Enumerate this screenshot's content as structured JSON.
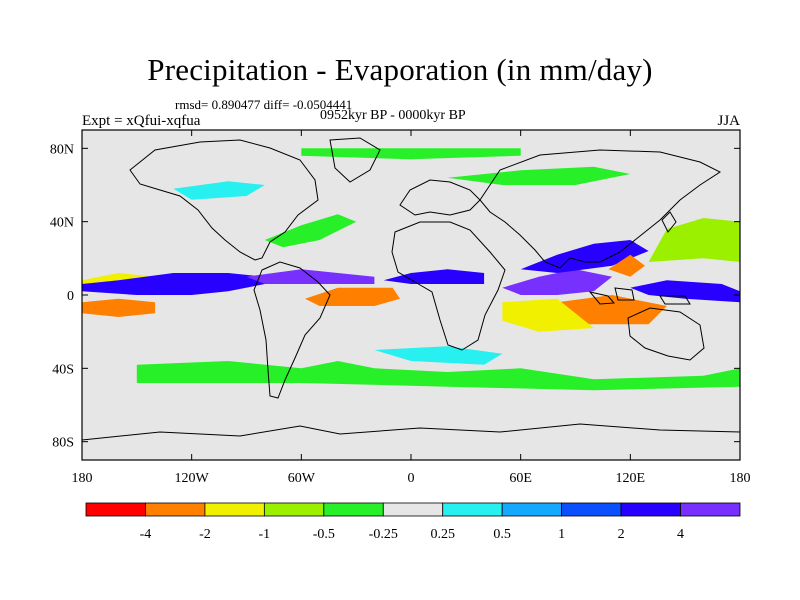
{
  "header": {
    "title": "Precipitation - Evaporation (in mm/day)",
    "stats": "rmsd= 0.890477 diff= -0.0504441",
    "period": "0952kyr BP - 0000kyr BP",
    "experiment": "Expt = xQfui-xqfua",
    "season": "JJA"
  },
  "map": {
    "type": "filled-contour-map",
    "projection": "cylindrical-equidistant",
    "xlim": [
      -180,
      180
    ],
    "ylim": [
      -90,
      90
    ],
    "lon_ticks": [
      {
        "value": -180,
        "label": "180"
      },
      {
        "value": -120,
        "label": "120W"
      },
      {
        "value": -60,
        "label": "60W"
      },
      {
        "value": 0,
        "label": "0"
      },
      {
        "value": 60,
        "label": "60E"
      },
      {
        "value": 120,
        "label": "120E"
      },
      {
        "value": 180,
        "label": "180"
      }
    ],
    "lat_ticks": [
      {
        "value": 80,
        "label": "80N"
      },
      {
        "value": 40,
        "label": "40N"
      },
      {
        "value": 0,
        "label": "0"
      },
      {
        "value": -40,
        "label": "40S"
      },
      {
        "value": -80,
        "label": "80S"
      }
    ],
    "background_color": "#e6e6e6",
    "anomaly_regions": [
      {
        "name": "itcz-pacific-east-negative",
        "class": 2,
        "polygon": [
          [
            -180,
            8
          ],
          [
            -160,
            12
          ],
          [
            -140,
            10
          ],
          [
            -120,
            8
          ],
          [
            -110,
            5
          ],
          [
            -120,
            2
          ],
          [
            -150,
            2
          ],
          [
            -180,
            4
          ]
        ]
      },
      {
        "name": "pacific-equator-positive",
        "class": 9,
        "polygon": [
          [
            -180,
            2
          ],
          [
            -150,
            0
          ],
          [
            -120,
            0
          ],
          [
            -100,
            2
          ],
          [
            -80,
            6
          ],
          [
            -80,
            10
          ],
          [
            -100,
            12
          ],
          [
            -130,
            12
          ],
          [
            -160,
            8
          ],
          [
            -180,
            6
          ]
        ]
      },
      {
        "name": "pacific-south-negative",
        "class": 1,
        "polygon": [
          [
            -180,
            -4
          ],
          [
            -160,
            -2
          ],
          [
            -140,
            -4
          ],
          [
            -140,
            -10
          ],
          [
            -160,
            -12
          ],
          [
            -180,
            -10
          ]
        ]
      },
      {
        "name": "pacific-south-green",
        "class": 5,
        "polygon": [
          [
            -180,
            -14
          ],
          [
            -150,
            -12
          ],
          [
            -130,
            -16
          ],
          [
            -110,
            -24
          ],
          [
            -120,
            -30
          ],
          [
            -150,
            -26
          ],
          [
            -180,
            -20
          ]
        ]
      },
      {
        "name": "atlantic-itcz-negative",
        "class": 0,
        "polygon": [
          [
            -50,
            0
          ],
          [
            -40,
            2
          ],
          [
            -20,
            2
          ],
          [
            -10,
            0
          ],
          [
            -20,
            -4
          ],
          [
            -40,
            -4
          ]
        ]
      },
      {
        "name": "atlantic-itcz-orange",
        "class": 1,
        "polygon": [
          [
            -58,
            -2
          ],
          [
            -40,
            4
          ],
          [
            -10,
            4
          ],
          [
            -6,
            -2
          ],
          [
            -20,
            -6
          ],
          [
            -50,
            -6
          ]
        ]
      },
      {
        "name": "atlantic-north-positive",
        "class": 10,
        "polygon": [
          [
            -90,
            10
          ],
          [
            -60,
            14
          ],
          [
            -40,
            12
          ],
          [
            -20,
            10
          ],
          [
            -20,
            6
          ],
          [
            -50,
            6
          ],
          [
            -80,
            6
          ]
        ]
      },
      {
        "name": "africa-sahel-positive",
        "class": 9,
        "polygon": [
          [
            -15,
            8
          ],
          [
            0,
            12
          ],
          [
            20,
            14
          ],
          [
            40,
            12
          ],
          [
            40,
            6
          ],
          [
            20,
            6
          ],
          [
            0,
            6
          ]
        ]
      },
      {
        "name": "indian-equator-positive",
        "class": 10,
        "polygon": [
          [
            50,
            4
          ],
          [
            70,
            10
          ],
          [
            90,
            14
          ],
          [
            110,
            10
          ],
          [
            100,
            2
          ],
          [
            80,
            0
          ],
          [
            60,
            0
          ]
        ]
      },
      {
        "name": "indonesia-negative",
        "class": 0,
        "polygon": [
          [
            90,
            -6
          ],
          [
            110,
            -4
          ],
          [
            130,
            -8
          ],
          [
            120,
            -14
          ],
          [
            100,
            -14
          ]
        ]
      },
      {
        "name": "indonesia-orange",
        "class": 1,
        "polygon": [
          [
            80,
            -4
          ],
          [
            110,
            0
          ],
          [
            140,
            -6
          ],
          [
            130,
            -16
          ],
          [
            90,
            -16
          ]
        ]
      },
      {
        "name": "indian-south-yellow",
        "class": 2,
        "polygon": [
          [
            50,
            -4
          ],
          [
            80,
            -2
          ],
          [
            100,
            -18
          ],
          [
            70,
            -20
          ],
          [
            50,
            -14
          ]
        ]
      },
      {
        "name": "west-pacific-positive",
        "class": 9,
        "polygon": [
          [
            120,
            4
          ],
          [
            140,
            8
          ],
          [
            170,
            6
          ],
          [
            180,
            2
          ],
          [
            180,
            -4
          ],
          [
            150,
            -2
          ],
          [
            130,
            0
          ]
        ]
      },
      {
        "name": "north-pacific-yellow",
        "class": 2,
        "polygon": [
          [
            140,
            26
          ],
          [
            160,
            30
          ],
          [
            180,
            32
          ],
          [
            180,
            22
          ],
          [
            160,
            20
          ],
          [
            140,
            22
          ]
        ]
      },
      {
        "name": "north-pacific-green",
        "class": 3,
        "polygon": [
          [
            130,
            18
          ],
          [
            160,
            20
          ],
          [
            180,
            18
          ],
          [
            180,
            40
          ],
          [
            160,
            42
          ],
          [
            140,
            36
          ]
        ]
      },
      {
        "name": "asian-monsoon-positive",
        "class": 9,
        "polygon": [
          [
            60,
            14
          ],
          [
            80,
            22
          ],
          [
            100,
            28
          ],
          [
            120,
            30
          ],
          [
            130,
            24
          ],
          [
            110,
            16
          ],
          [
            80,
            12
          ]
        ]
      },
      {
        "name": "south-china-sea-orange",
        "class": 1,
        "polygon": [
          [
            108,
            14
          ],
          [
            120,
            22
          ],
          [
            128,
            16
          ],
          [
            120,
            10
          ]
        ]
      },
      {
        "name": "north-atlantic-green",
        "class": 4,
        "polygon": [
          [
            -80,
            30
          ],
          [
            -60,
            38
          ],
          [
            -40,
            44
          ],
          [
            -30,
            40
          ],
          [
            -50,
            30
          ],
          [
            -70,
            26
          ]
        ]
      },
      {
        "name": "southern-ocean-green",
        "class": 4,
        "polygon": [
          [
            -150,
            -38
          ],
          [
            -100,
            -36
          ],
          [
            -60,
            -40
          ],
          [
            -40,
            -36
          ],
          [
            -20,
            -40
          ],
          [
            20,
            -42
          ],
          [
            60,
            -40
          ],
          [
            100,
            -46
          ],
          [
            160,
            -44
          ],
          [
            180,
            -40
          ],
          [
            180,
            -50
          ],
          [
            100,
            -52
          ],
          [
            20,
            -50
          ],
          [
            -60,
            -48
          ],
          [
            -150,
            -48
          ]
        ]
      },
      {
        "name": "southern-ocean-cyan",
        "class": 6,
        "polygon": [
          [
            -20,
            -30
          ],
          [
            20,
            -28
          ],
          [
            50,
            -32
          ],
          [
            40,
            -38
          ],
          [
            0,
            -36
          ]
        ]
      },
      {
        "name": "siberia-green",
        "class": 4,
        "polygon": [
          [
            20,
            64
          ],
          [
            60,
            68
          ],
          [
            100,
            70
          ],
          [
            120,
            66
          ],
          [
            90,
            60
          ],
          [
            50,
            60
          ]
        ]
      },
      {
        "name": "canada-cyan",
        "class": 6,
        "polygon": [
          [
            -130,
            58
          ],
          [
            -100,
            62
          ],
          [
            -80,
            60
          ],
          [
            -90,
            54
          ],
          [
            -120,
            52
          ]
        ]
      },
      {
        "name": "arctic-green",
        "class": 4,
        "polygon": [
          [
            -60,
            80
          ],
          [
            0,
            80
          ],
          [
            60,
            80
          ],
          [
            60,
            76
          ],
          [
            0,
            74
          ],
          [
            -60,
            76
          ]
        ]
      }
    ]
  },
  "legend": {
    "colors": [
      "#ff0000",
      "#ff8000",
      "#f0f000",
      "#9bf000",
      "#28f028",
      "#e6e6e6",
      "#28f0f0",
      "#14a8ff",
      "#0a50ff",
      "#2800ff",
      "#7830ff"
    ],
    "labels": [
      "-4",
      "-2",
      "-1",
      "-0.5",
      "-0.25",
      "0.25",
      "0.5",
      "1",
      "2",
      "4"
    ]
  }
}
